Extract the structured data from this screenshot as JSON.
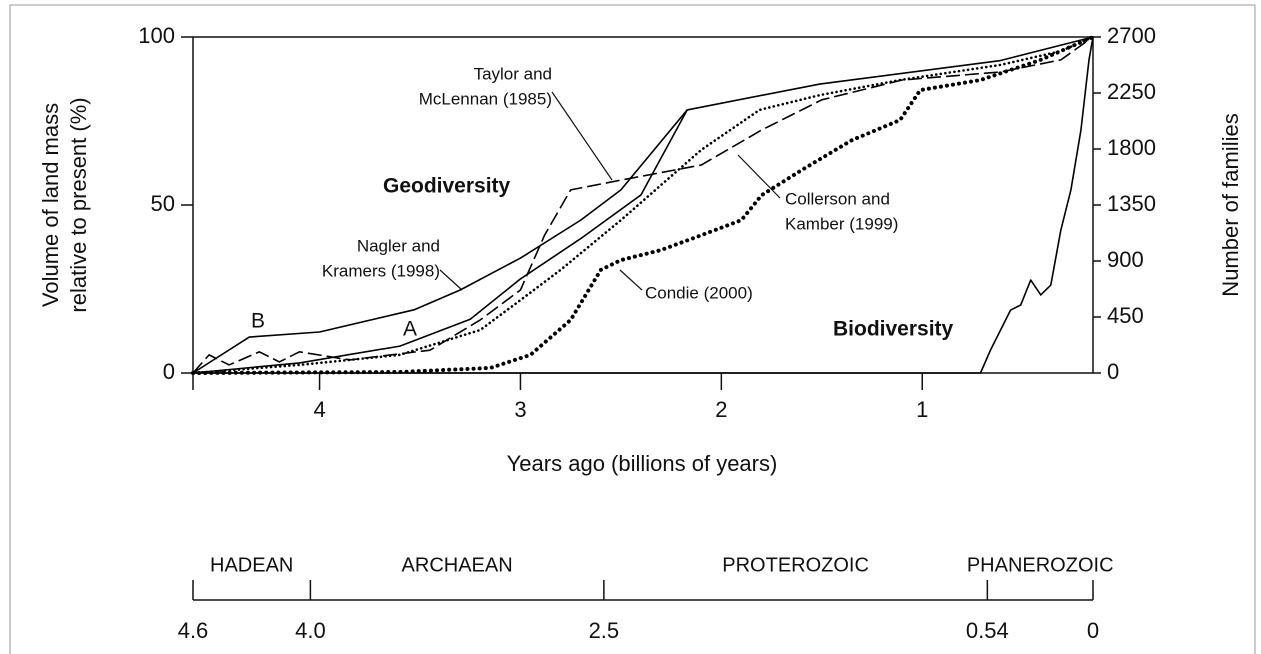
{
  "chart_data": {
    "type": "line",
    "x_label": "Years ago (billions of years)",
    "y_label": [
      "Volume of land mass",
      "relative to present (%)"
    ],
    "y2_label": "Number of families",
    "xlim": [
      4.63,
      0.15
    ],
    "xticks": [
      4,
      3,
      2,
      1
    ],
    "ylim": [
      0,
      100
    ],
    "yticks": [
      0,
      50,
      100
    ],
    "y2lim": [
      0,
      2700
    ],
    "y2ticks": [
      0,
      450,
      900,
      1350,
      1800,
      2250,
      2700
    ],
    "series": [
      {
        "color": "#000000",
        "line_style": "solid",
        "x": [
          4.63,
          4.35,
          4.0,
          3.53,
          3.3,
          3.0,
          2.7,
          2.5,
          2.17,
          1.51,
          0.61,
          0.15
        ],
        "values": [
          0,
          10.7,
          12.2,
          18.8,
          24.7,
          34.2,
          45.5,
          54.5,
          78.3,
          86,
          93,
          100
        ]
      },
      {
        "color": "#000000",
        "line_style": "solid",
        "x": [
          4.63,
          4.1,
          3.6,
          3.25,
          3.0,
          2.7,
          2.4,
          2.17
        ],
        "values": [
          0,
          3,
          8,
          16,
          28,
          40,
          53,
          78.3
        ]
      },
      {
        "color": "#000000",
        "line_style": "dashed",
        "x": [
          4.63,
          4.55,
          4.45,
          4.3,
          4.2,
          4.1,
          3.85,
          3.45,
          3.2,
          3.0,
          2.88,
          2.75,
          2.5,
          2.1,
          1.8,
          1.5,
          1.1,
          0.61,
          0.31,
          0.15
        ],
        "values": [
          0,
          5.4,
          2.4,
          6.3,
          3.3,
          6.3,
          3.9,
          6.8,
          15.8,
          24.7,
          41,
          54.5,
          57.4,
          61.9,
          72.3,
          81.3,
          87.2,
          89.6,
          93.2,
          100
        ]
      },
      {
        "color": "#000000",
        "line_style": "dotted",
        "x": [
          4.63,
          4.1,
          3.6,
          3.2,
          3.0,
          2.8,
          2.5,
          2.1,
          1.81,
          1.51,
          1.11,
          0.61,
          0.31,
          0.15
        ],
        "values": [
          0,
          2.4,
          5.4,
          12.8,
          21.7,
          30.7,
          45.5,
          66.4,
          78.3,
          82.7,
          87.2,
          91.7,
          95.8,
          100
        ]
      },
      {
        "color": "#000000",
        "line_style": "heavy-dotted",
        "x": [
          4.63,
          3.6,
          3.15,
          2.95,
          2.75,
          2.6,
          2.5,
          2.3,
          2.1,
          1.9,
          1.8,
          1.6,
          1.35,
          1.11,
          1.01,
          0.71,
          0.41,
          0.15
        ],
        "values": [
          0,
          0.3,
          1.5,
          5.4,
          15.8,
          30.7,
          33.6,
          36.6,
          41,
          45.5,
          52.9,
          60.4,
          69.3,
          75.3,
          84.2,
          87.2,
          93.2,
          100
        ]
      },
      {
        "color": "#000000",
        "line_style": "solid",
        "axis": "y2",
        "x": [
          4.63,
          0.71,
          0.66,
          0.56,
          0.51,
          0.46,
          0.41,
          0.36,
          0.31,
          0.26,
          0.21,
          0.17,
          0.15
        ],
        "values": [
          0,
          0,
          185,
          506,
          546,
          747,
          627,
          707,
          1149,
          1471,
          1953,
          2515,
          2700
        ]
      }
    ],
    "annotations": [
      {
        "text": [
          "Taylor and",
          "McLennan (1985)"
        ]
      },
      {
        "text": [
          "Geodiversity"
        ]
      },
      {
        "text": [
          "Nagler and",
          "Kramers (1998)"
        ]
      },
      {
        "text": [
          "Collerson and",
          "Kamber (1999)"
        ]
      },
      {
        "text": [
          "Condie (2000)"
        ]
      },
      {
        "text": [
          "B"
        ]
      },
      {
        "text": [
          "A"
        ]
      },
      {
        "text": [
          "Biodiversity"
        ]
      }
    ],
    "eon_scale": {
      "names": [
        "HADEAN",
        "ARCHAEAN",
        "PROTEROZOIC",
        "PHANEROZOIC"
      ],
      "boundaries": [
        {
          "value": 4.6,
          "label": "4.6"
        },
        {
          "value": 4.0,
          "label": "4.0"
        },
        2.5,
        0.54,
        0
      ]
    }
  }
}
